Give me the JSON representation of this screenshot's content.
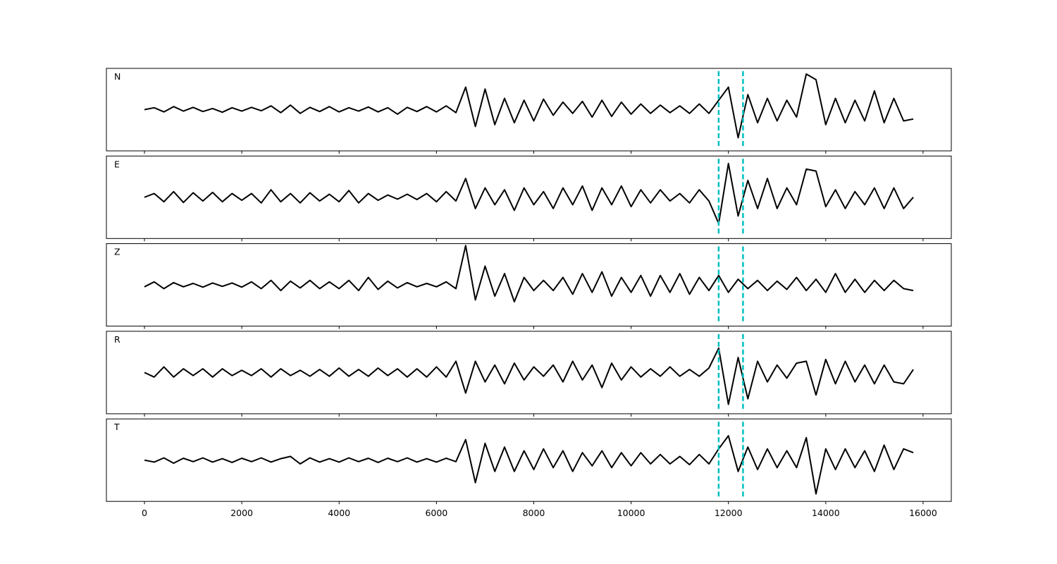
{
  "chart_data": {
    "type": "line",
    "subplots": true,
    "x": [
      0,
      200,
      400,
      600,
      800,
      1000,
      1200,
      1400,
      1600,
      1800,
      2000,
      2200,
      2400,
      2600,
      2800,
      3000,
      3200,
      3400,
      3600,
      3800,
      4000,
      4200,
      4400,
      4600,
      4800,
      5000,
      5200,
      5400,
      5600,
      5800,
      6000,
      6200,
      6400,
      6600,
      6800,
      7000,
      7200,
      7400,
      7600,
      7800,
      8000,
      8200,
      8400,
      8600,
      8800,
      9000,
      9200,
      9400,
      9600,
      9800,
      10000,
      10200,
      10400,
      10600,
      10800,
      11000,
      11200,
      11400,
      11600,
      11800,
      12000,
      12200,
      12400,
      12600,
      12800,
      13000,
      13200,
      13400,
      13600,
      13800,
      14000,
      14200,
      14400,
      14600,
      14800,
      15000,
      15200,
      15400,
      15600,
      15800
    ],
    "series": [
      {
        "name": "N",
        "color": "#000000",
        "values": [
          0.0,
          0.05,
          -0.06,
          0.08,
          -0.04,
          0.06,
          -0.05,
          0.03,
          -0.07,
          0.05,
          -0.04,
          0.06,
          -0.03,
          0.1,
          -0.08,
          0.12,
          -0.1,
          0.06,
          -0.05,
          0.08,
          -0.06,
          0.05,
          -0.04,
          0.07,
          -0.06,
          0.05,
          -0.12,
          0.06,
          -0.05,
          0.08,
          -0.06,
          0.1,
          -0.08,
          0.6,
          -0.45,
          0.55,
          -0.4,
          0.3,
          -0.35,
          0.25,
          -0.3,
          0.28,
          -0.15,
          0.2,
          -0.1,
          0.22,
          -0.2,
          0.25,
          -0.18,
          0.2,
          -0.12,
          0.15,
          -0.1,
          0.12,
          -0.08,
          0.1,
          -0.1,
          0.15,
          -0.1,
          0.25,
          0.6,
          -0.75,
          0.4,
          -0.35,
          0.3,
          -0.3,
          0.25,
          -0.2,
          0.95,
          0.8,
          -0.4,
          0.3,
          -0.35,
          0.25,
          -0.3,
          0.5,
          -0.35,
          0.3,
          -0.3,
          -0.25
        ]
      },
      {
        "name": "E",
        "color": "#000000",
        "values": [
          0.0,
          0.1,
          -0.12,
          0.15,
          -0.14,
          0.12,
          -0.1,
          0.13,
          -0.12,
          0.1,
          -0.08,
          0.1,
          -0.15,
          0.2,
          -0.12,
          0.1,
          -0.15,
          0.12,
          -0.1,
          0.08,
          -0.12,
          0.18,
          -0.15,
          0.1,
          -0.08,
          0.06,
          -0.05,
          0.08,
          -0.06,
          0.1,
          -0.12,
          0.15,
          -0.1,
          0.5,
          -0.3,
          0.25,
          -0.2,
          0.2,
          -0.35,
          0.25,
          -0.2,
          0.15,
          -0.3,
          0.25,
          -0.2,
          0.3,
          -0.35,
          0.25,
          -0.2,
          0.3,
          -0.25,
          0.2,
          -0.15,
          0.2,
          -0.1,
          0.1,
          -0.15,
          0.2,
          -0.1,
          -0.7,
          0.9,
          -0.5,
          0.45,
          -0.3,
          0.5,
          -0.3,
          0.25,
          -0.2,
          0.75,
          0.7,
          -0.25,
          0.2,
          -0.3,
          0.15,
          -0.2,
          0.25,
          -0.3,
          0.25,
          -0.3,
          0.0
        ]
      },
      {
        "name": "Z",
        "color": "#000000",
        "values": [
          -0.05,
          0.08,
          -0.1,
          0.06,
          -0.05,
          0.04,
          -0.06,
          0.05,
          -0.04,
          0.05,
          -0.06,
          0.08,
          -0.1,
          0.12,
          -0.15,
          0.1,
          -0.08,
          0.12,
          -0.1,
          0.08,
          -0.1,
          0.12,
          -0.15,
          0.2,
          -0.12,
          0.1,
          -0.08,
          0.06,
          -0.05,
          0.04,
          -0.05,
          0.08,
          -0.1,
          1.05,
          -0.4,
          0.5,
          -0.3,
          0.3,
          -0.45,
          0.2,
          -0.15,
          0.12,
          -0.15,
          0.2,
          -0.25,
          0.3,
          -0.2,
          0.35,
          -0.3,
          0.2,
          -0.2,
          0.25,
          -0.3,
          0.25,
          -0.2,
          0.3,
          -0.25,
          0.2,
          -0.15,
          0.25,
          -0.2,
          0.15,
          -0.1,
          0.12,
          -0.15,
          0.1,
          -0.12,
          0.2,
          -0.15,
          0.15,
          -0.2,
          0.3,
          -0.2,
          0.15,
          -0.2,
          0.12,
          -0.15,
          0.12,
          -0.1,
          -0.15
        ]
      },
      {
        "name": "R",
        "color": "#000000",
        "values": [
          0.0,
          -0.12,
          0.15,
          -0.12,
          0.1,
          -0.08,
          0.1,
          -0.12,
          0.1,
          -0.08,
          0.06,
          -0.08,
          0.1,
          -0.12,
          0.1,
          -0.08,
          0.06,
          -0.1,
          0.08,
          -0.1,
          0.12,
          -0.1,
          0.08,
          -0.1,
          0.12,
          -0.08,
          0.1,
          -0.12,
          0.1,
          -0.12,
          0.15,
          -0.12,
          0.3,
          -0.55,
          0.3,
          -0.25,
          0.2,
          -0.3,
          0.25,
          -0.2,
          0.15,
          -0.1,
          0.2,
          -0.25,
          0.3,
          -0.2,
          0.2,
          -0.4,
          0.25,
          -0.2,
          0.15,
          -0.12,
          0.1,
          -0.1,
          0.15,
          -0.1,
          0.08,
          -0.1,
          0.12,
          0.65,
          -0.85,
          0.4,
          -0.7,
          0.3,
          -0.25,
          0.2,
          -0.15,
          0.25,
          0.3,
          -0.6,
          0.35,
          -0.3,
          0.3,
          -0.25,
          0.2,
          -0.3,
          0.2,
          -0.25,
          -0.3,
          0.08
        ]
      },
      {
        "name": "T",
        "color": "#000000",
        "values": [
          0.0,
          -0.05,
          0.06,
          -0.08,
          0.05,
          -0.04,
          0.06,
          -0.05,
          0.04,
          -0.06,
          0.05,
          -0.04,
          0.06,
          -0.05,
          0.04,
          0.1,
          -0.1,
          0.06,
          -0.05,
          0.04,
          -0.05,
          0.06,
          -0.04,
          0.05,
          -0.06,
          0.05,
          -0.04,
          0.06,
          -0.05,
          0.04,
          -0.05,
          0.05,
          -0.04,
          0.55,
          -0.6,
          0.45,
          -0.3,
          0.35,
          -0.3,
          0.25,
          -0.25,
          0.3,
          -0.2,
          0.25,
          -0.3,
          0.2,
          -0.15,
          0.25,
          -0.2,
          0.2,
          -0.15,
          0.2,
          -0.1,
          0.15,
          -0.1,
          0.1,
          -0.12,
          0.15,
          -0.1,
          0.3,
          0.65,
          -0.3,
          0.35,
          -0.25,
          0.3,
          -0.2,
          0.25,
          -0.2,
          0.6,
          -0.9,
          0.3,
          -0.25,
          0.3,
          -0.2,
          0.25,
          -0.3,
          0.4,
          -0.25,
          0.3,
          0.2
        ]
      }
    ],
    "vlines": [
      11800,
      12300
    ],
    "vline_color": "#00bfbf",
    "xlim": [
      -782,
      16580
    ],
    "xticks": [
      0,
      2000,
      4000,
      6000,
      8000,
      10000,
      12000,
      14000,
      16000
    ],
    "ylim": [
      -1.1,
      1.1
    ]
  }
}
